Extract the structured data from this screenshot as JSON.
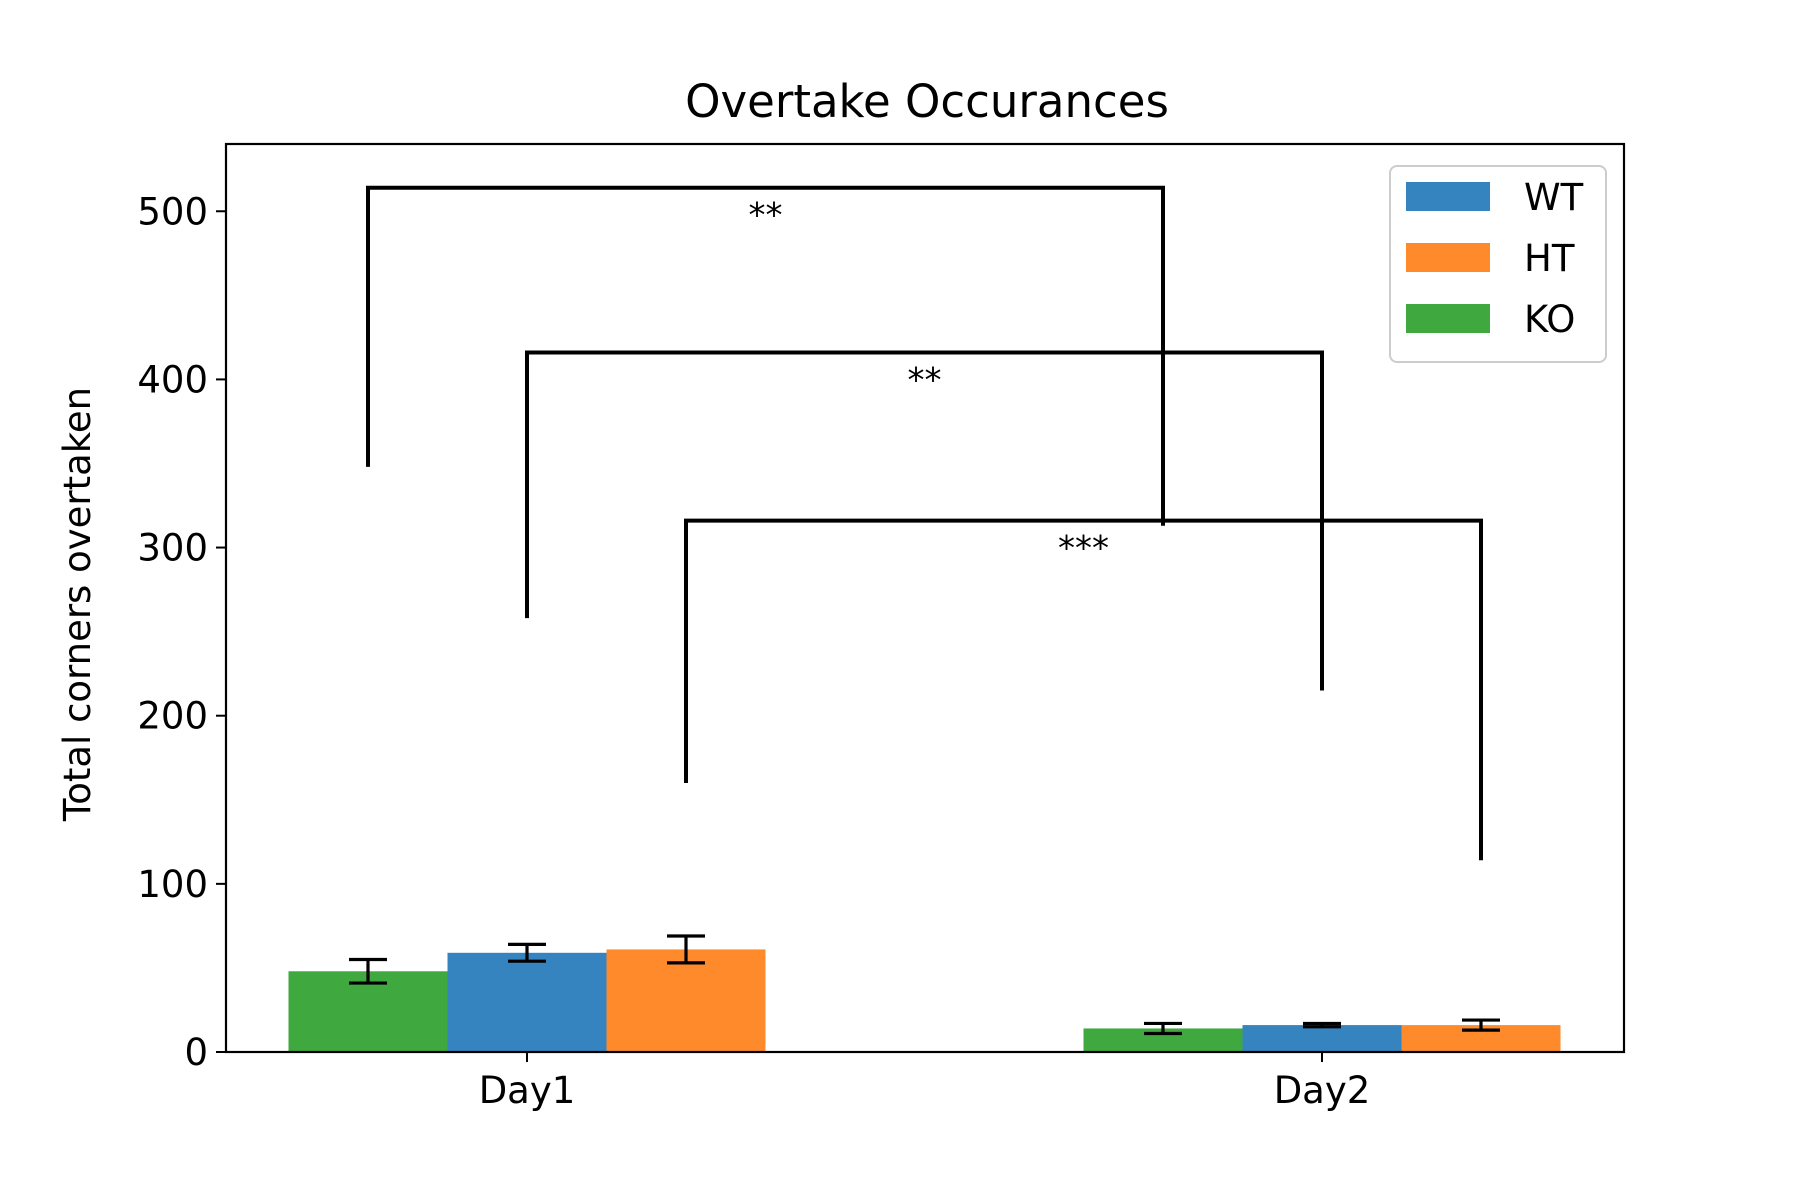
{
  "chart_data": {
    "type": "bar",
    "title": "Overtake Occurances",
    "xlabel": "",
    "ylabel": "Total corners overtaken",
    "categories": [
      "Day1",
      "Day2"
    ],
    "ylim": [
      0,
      540
    ],
    "yticks": [
      0,
      100,
      200,
      300,
      400,
      500
    ],
    "grid": false,
    "legend_position": "top-right",
    "legend_order": [
      "WT",
      "HT",
      "KO"
    ],
    "bar_order": [
      "KO",
      "WT",
      "HT"
    ],
    "series": [
      {
        "name": "KO",
        "color": "#3fa83f",
        "values": [
          48,
          14
        ],
        "errors": [
          7,
          3
        ]
      },
      {
        "name": "WT",
        "color": "#3583bf",
        "values": [
          59,
          16
        ],
        "errors": [
          5,
          1
        ]
      },
      {
        "name": "HT",
        "color": "#ff8a2c",
        "values": [
          61,
          16
        ],
        "errors": [
          8,
          3
        ]
      }
    ],
    "annotations": [
      {
        "label": "**",
        "from": {
          "category": 0,
          "series": "KO"
        },
        "to": {
          "category": 1,
          "series": "KO"
        },
        "top": 514,
        "left_end": 348,
        "right_end": 313
      },
      {
        "label": "**",
        "from": {
          "category": 0,
          "series": "WT"
        },
        "to": {
          "category": 1,
          "series": "WT"
        },
        "top": 416,
        "left_end": 258,
        "right_end": 215
      },
      {
        "label": "***",
        "from": {
          "category": 0,
          "series": "HT"
        },
        "to": {
          "category": 1,
          "series": "HT"
        },
        "top": 316,
        "left_end": 160,
        "right_end": 114
      }
    ]
  }
}
